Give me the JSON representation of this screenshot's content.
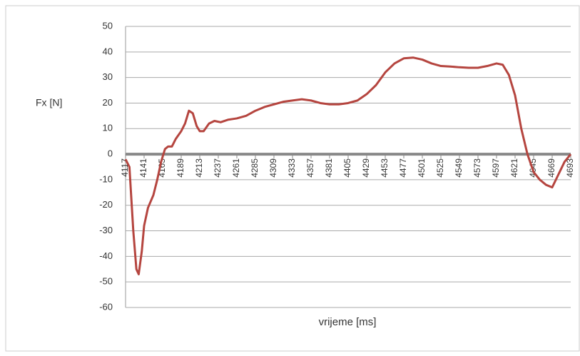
{
  "chart_data": {
    "type": "line",
    "y_label": "Fx  [N]",
    "x_label": "vrijeme  [ms]",
    "x": [
      4117,
      4122,
      4127,
      4131,
      4134,
      4138,
      4141,
      4146,
      4153,
      4158,
      4163,
      4168,
      4172,
      4177,
      4182,
      4189,
      4194,
      4199,
      4204,
      4209,
      4213,
      4218,
      4225,
      4232,
      4240,
      4250,
      4261,
      4273,
      4285,
      4297,
      4309,
      4321,
      4333,
      4345,
      4357,
      4369,
      4381,
      4393,
      4405,
      4417,
      4429,
      4441,
      4453,
      4465,
      4477,
      4489,
      4501,
      4513,
      4525,
      4537,
      4549,
      4561,
      4573,
      4585,
      4597,
      4605,
      4613,
      4621,
      4629,
      4637,
      4645,
      4653,
      4661,
      4669,
      4677,
      4685,
      4693
    ],
    "series": [
      {
        "color": "#b5453f",
        "values": [
          -2,
          -5,
          -30,
          -45,
          -47,
          -38,
          -28,
          -21,
          -16,
          -10,
          -3,
          2,
          3,
          3,
          6,
          9,
          12,
          17,
          16,
          11,
          9,
          9,
          12,
          13,
          12.5,
          13.5,
          14,
          15,
          17,
          18.5,
          19.5,
          20.5,
          21,
          21.5,
          21,
          20,
          19.5,
          19.5,
          20,
          21,
          23.5,
          27,
          32,
          35.5,
          37.5,
          37.8,
          37,
          35.5,
          34.5,
          34.3,
          34,
          33.8,
          33.8,
          34.5,
          35.5,
          35,
          31,
          23,
          10,
          0,
          -7,
          -10,
          -12,
          -13,
          -8,
          -3,
          0
        ]
      }
    ],
    "xlim": [
      4117,
      4693
    ],
    "xticks": [
      4117,
      4141,
      4165,
      4189,
      4213,
      4237,
      4261,
      4285,
      4309,
      4333,
      4357,
      4381,
      4405,
      4429,
      4453,
      4477,
      4501,
      4525,
      4549,
      4573,
      4597,
      4621,
      4645,
      4669,
      4693
    ],
    "ylim": [
      -60,
      50
    ],
    "yticks": [
      -60,
      -50,
      -40,
      -30,
      -20,
      -10,
      0,
      10,
      20,
      30,
      40,
      50
    ],
    "grid": true
  }
}
